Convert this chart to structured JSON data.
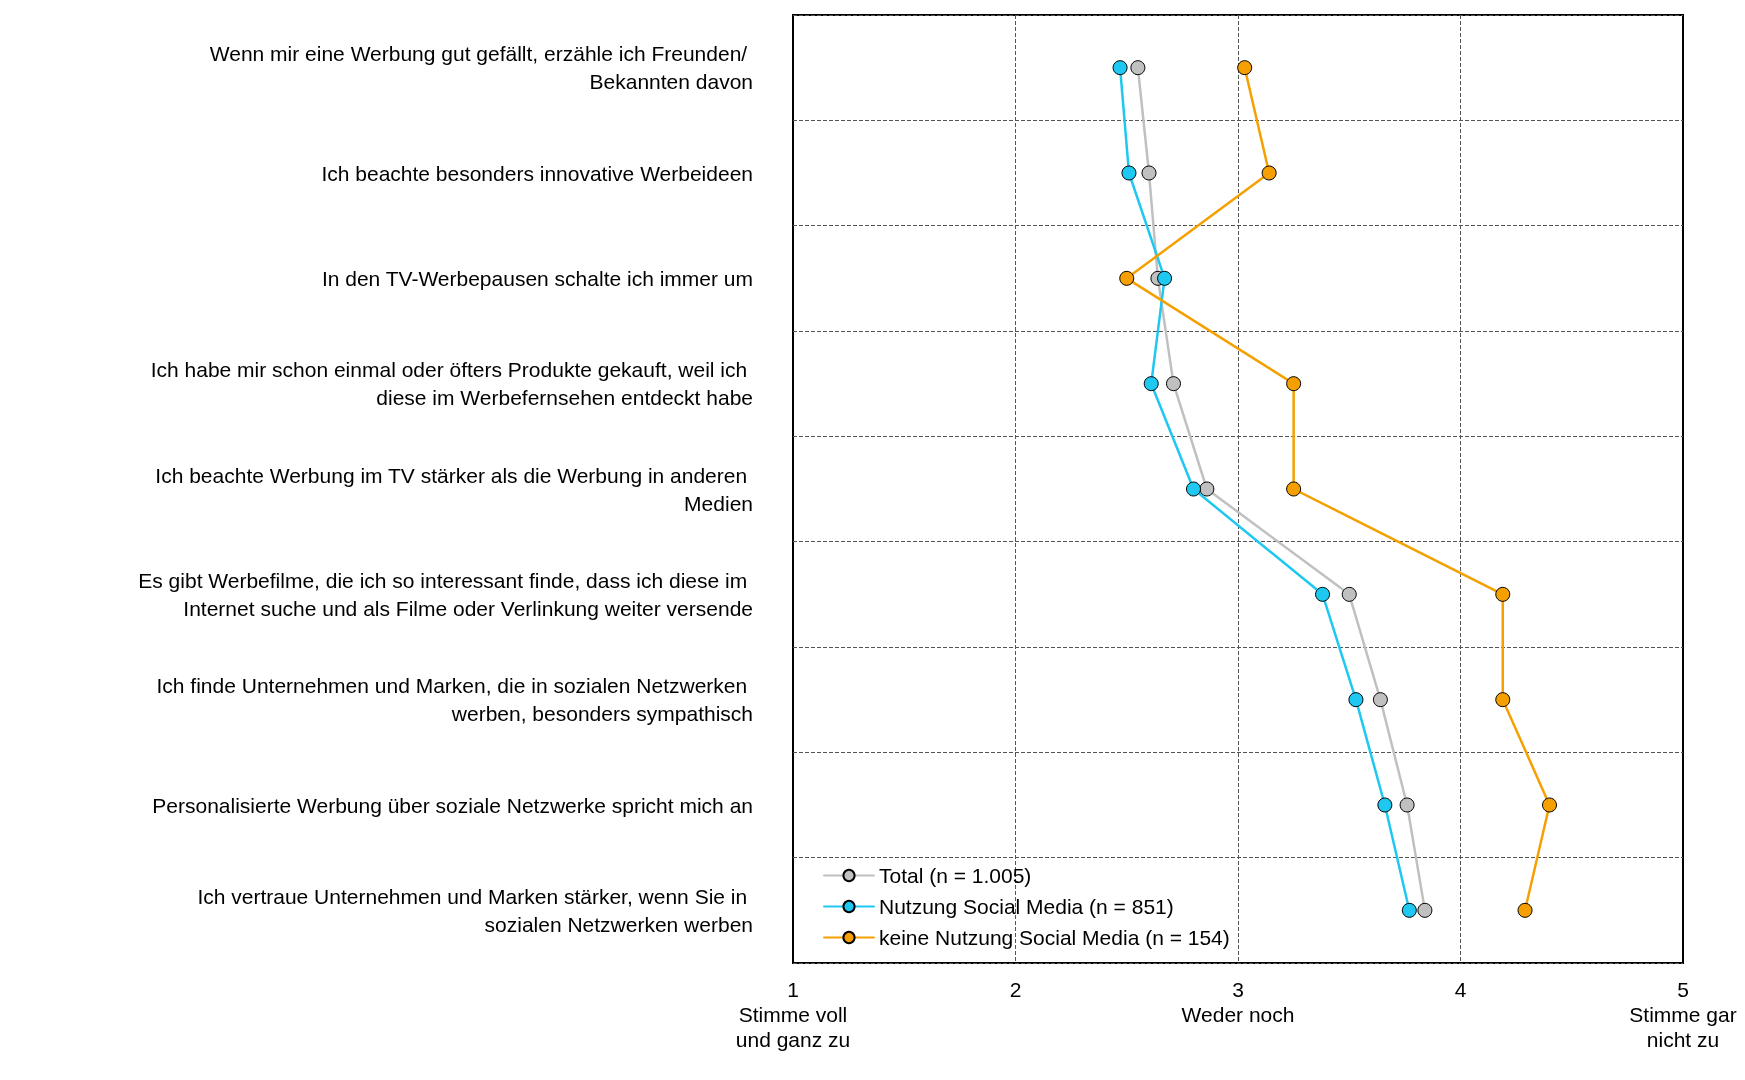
{
  "chart_data": {
    "type": "line",
    "orientation": "horizontal",
    "categories": [
      "Wenn mir eine Werbung gut gefällt, erzähle ich Freunden/ Bekannten davon",
      "Ich beachte besonders innovative Werbeideen",
      "In den TV-Werbepausen schalte ich immer um",
      "Ich habe mir schon einmal oder öfters Produkte gekauft, weil ich diese im Werbefernsehen entdeckt habe",
      "Ich beachte Werbung im TV stärker als die Werbung in anderen Medien",
      "Es gibt Werbefilme, die ich so interessant finde, dass ich diese im Internet suche und als Filme oder Verlinkung weiter versende",
      "Ich finde Unternehmen und Marken, die in sozialen Netzwerken werben, besonders sympathisch",
      "Personalisierte Werbung über soziale Netzwerke spricht mich an",
      "Ich vertraue Unternehmen und Marken stärker, wenn Sie in sozialen Netzwerken werben"
    ],
    "series": [
      {
        "name": "Total (n = 1.005)",
        "color": "#c0c0c0",
        "values": [
          2.55,
          2.6,
          2.64,
          2.71,
          2.86,
          3.5,
          3.64,
          3.76,
          3.84
        ]
      },
      {
        "name": "Nutzung Social Media (n = 851)",
        "color": "#1ec8f0",
        "values": [
          2.47,
          2.51,
          2.67,
          2.61,
          2.8,
          3.38,
          3.53,
          3.66,
          3.77
        ]
      },
      {
        "name": "keine Nutzung Social Media (n = 154)",
        "color": "#f5a000",
        "values": [
          3.03,
          3.14,
          2.5,
          3.25,
          3.25,
          4.19,
          4.19,
          4.4,
          4.29
        ]
      }
    ],
    "xlim": [
      1,
      5
    ],
    "xticks": [
      {
        "value": 1,
        "label": "1\nStimme voll\nund ganz zu"
      },
      2,
      {
        "value": 3,
        "label": "3\nWeder noch"
      },
      4,
      {
        "value": 5,
        "label": "5\nStimme gar\nnicht zu"
      }
    ],
    "grid": true,
    "legend": "bottom left",
    "marker": "circle",
    "line_style": "solid"
  }
}
